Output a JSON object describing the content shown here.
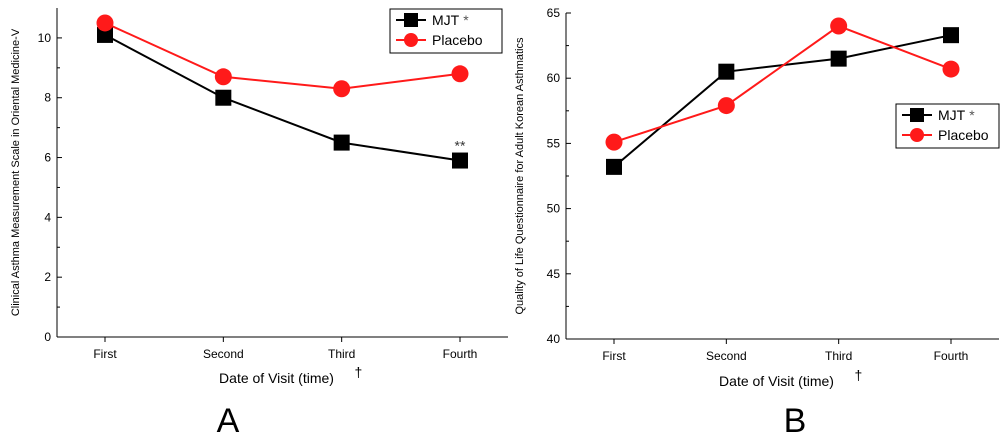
{
  "chart_data": [
    {
      "type": "line",
      "panel_label": "A",
      "xlabel": "Date of Visit (time)",
      "xlabel_mark": "†",
      "ylabel": "Clinical Asthma Measurement Scale in Oriental Medicine-V",
      "categories": [
        "First",
        "Second",
        "Third",
        "Fourth"
      ],
      "ylim": [
        0,
        11
      ],
      "yticks": [
        0,
        2,
        4,
        6,
        8,
        10
      ],
      "grid": false,
      "legend_position": "top-right",
      "series": [
        {
          "name": "MJT",
          "name_mark": "*",
          "values": [
            10.1,
            8.0,
            6.5,
            5.9
          ],
          "color": "#000000",
          "marker": "square"
        },
        {
          "name": "Placebo",
          "values": [
            10.5,
            8.7,
            8.3,
            8.8
          ],
          "color": "#ff1a1a",
          "marker": "circle"
        }
      ],
      "annotations": [
        {
          "text": "**",
          "category": "Fourth",
          "series": "MJT"
        }
      ]
    },
    {
      "type": "line",
      "panel_label": "B",
      "xlabel": "Date of Visit (time)",
      "xlabel_mark": "†",
      "ylabel": "Quality of Life Questionnaire for Adult Korean Asthmatics",
      "categories": [
        "First",
        "Second",
        "Third",
        "Fourth"
      ],
      "ylim": [
        40,
        65
      ],
      "yticks": [
        40,
        45,
        50,
        55,
        60,
        65
      ],
      "grid": false,
      "legend_position": "right",
      "series": [
        {
          "name": "MJT",
          "name_mark": "*",
          "values": [
            53.2,
            60.5,
            61.5,
            63.3
          ],
          "color": "#000000",
          "marker": "square"
        },
        {
          "name": "Placebo",
          "values": [
            55.1,
            57.9,
            64.0,
            60.7
          ],
          "color": "#ff1a1a",
          "marker": "circle"
        }
      ]
    }
  ]
}
